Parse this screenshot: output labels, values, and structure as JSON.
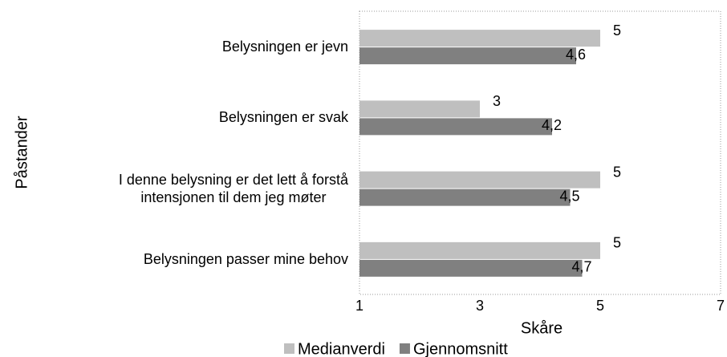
{
  "chart_data": {
    "type": "barh",
    "categories": [
      "Belysningen er jevn",
      "Belysningen er svak",
      "I denne belysning er det lett å forstå\nintensjonen til dem jeg møter",
      "Belysningen passer mine behov"
    ],
    "series": [
      {
        "name": "Medianverdi",
        "color": "#bfbfbf",
        "values": [
          5,
          3,
          5,
          5
        ],
        "value_labels": [
          "5",
          "3",
          "5",
          "5"
        ]
      },
      {
        "name": "Gjennomsnitt",
        "color": "#808080",
        "values": [
          4.6,
          4.2,
          4.5,
          4.7
        ],
        "value_labels": [
          "4,6",
          "4,2",
          "4,5",
          "4,7"
        ]
      }
    ],
    "xlim": [
      1,
      7
    ],
    "xticks": [
      1,
      3,
      5,
      7
    ],
    "xlabel": "Skåre",
    "ylabel": "Påstander",
    "grid": false,
    "legend": "bottom"
  }
}
